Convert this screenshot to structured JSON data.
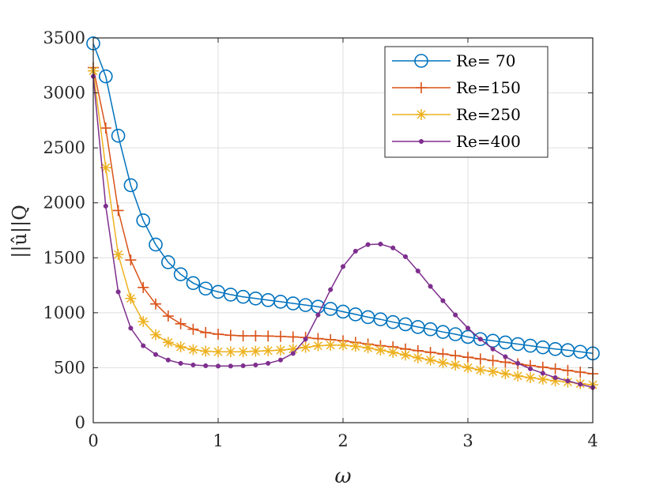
{
  "chart_data": {
    "type": "line",
    "xlabel": "ω",
    "ylabel": "||û||Q",
    "xlim": [
      0,
      4
    ],
    "ylim": [
      0,
      3500
    ],
    "xticks": [
      0,
      1,
      2,
      3,
      4
    ],
    "yticks": [
      0,
      500,
      1000,
      1500,
      2000,
      2500,
      3000,
      3500
    ],
    "xtick_labels": [
      "0",
      "1",
      "2",
      "3",
      "4"
    ],
    "ytick_labels": [
      "0",
      "500",
      "1000",
      "1500",
      "2000",
      "2500",
      "3000",
      "3500"
    ],
    "grid": true,
    "legend_position": "top-right",
    "x": [
      0,
      0.1,
      0.2,
      0.3,
      0.4,
      0.5,
      0.6,
      0.7,
      0.8,
      0.9,
      1.0,
      1.1,
      1.2,
      1.3,
      1.4,
      1.5,
      1.6,
      1.7,
      1.8,
      1.9,
      2.0,
      2.1,
      2.2,
      2.3,
      2.4,
      2.5,
      2.6,
      2.7,
      2.8,
      2.9,
      3.0,
      3.1,
      3.2,
      3.3,
      3.4,
      3.5,
      3.6,
      3.7,
      3.8,
      3.9,
      4.0
    ],
    "series": [
      {
        "name": "Re= 70",
        "color": "#0072BD",
        "marker": "circle",
        "values": [
          3450,
          3150,
          2610,
          2160,
          1840,
          1620,
          1460,
          1350,
          1270,
          1220,
          1190,
          1165,
          1145,
          1130,
          1115,
          1100,
          1085,
          1070,
          1055,
          1035,
          1010,
          985,
          960,
          940,
          915,
          895,
          870,
          850,
          825,
          805,
          780,
          760,
          745,
          730,
          715,
          700,
          685,
          670,
          660,
          645,
          630
        ]
      },
      {
        "name": "Re=150",
        "color": "#D95319",
        "marker": "plus",
        "values": [
          3230,
          2680,
          1930,
          1480,
          1230,
          1080,
          970,
          900,
          850,
          820,
          805,
          795,
          790,
          790,
          788,
          785,
          780,
          775,
          765,
          755,
          745,
          730,
          715,
          700,
          690,
          670,
          655,
          640,
          625,
          610,
          595,
          580,
          565,
          550,
          535,
          520,
          505,
          490,
          475,
          460,
          445
        ]
      },
      {
        "name": "Re=250",
        "color": "#EDB120",
        "marker": "asterisk",
        "values": [
          3200,
          2320,
          1530,
          1130,
          920,
          800,
          730,
          690,
          665,
          650,
          645,
          645,
          645,
          650,
          655,
          660,
          670,
          685,
          700,
          705,
          705,
          695,
          680,
          660,
          640,
          615,
          590,
          570,
          545,
          525,
          500,
          480,
          465,
          445,
          425,
          410,
          395,
          380,
          370,
          355,
          345
        ]
      },
      {
        "name": "Re=400",
        "color": "#7E2F8E",
        "marker": "dot",
        "values": [
          3150,
          1970,
          1190,
          860,
          700,
          620,
          570,
          540,
          525,
          518,
          515,
          515,
          518,
          525,
          540,
          570,
          630,
          760,
          980,
          1210,
          1420,
          1560,
          1620,
          1625,
          1590,
          1510,
          1380,
          1240,
          1110,
          980,
          860,
          760,
          670,
          600,
          540,
          490,
          450,
          410,
          380,
          350,
          320
        ]
      }
    ]
  }
}
